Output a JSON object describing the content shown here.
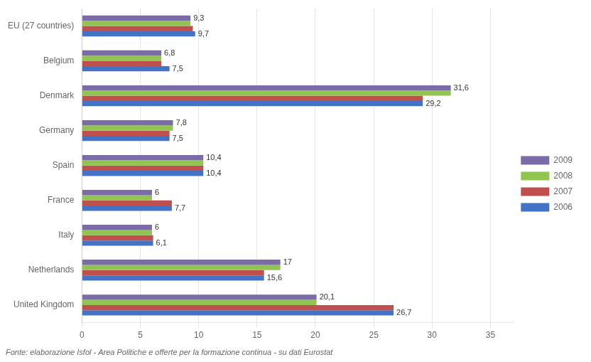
{
  "chart_data": {
    "type": "bar",
    "orientation": "horizontal",
    "categories": [
      "EU (27 countries)",
      "Belgium",
      "Denmark",
      "Germany",
      "Spain",
      "France",
      "Italy",
      "Netherlands",
      "United Kingdom"
    ],
    "series": [
      {
        "name": "2009",
        "color": "#7B6CA8",
        "values": [
          9.3,
          6.8,
          31.6,
          7.8,
          10.4,
          6.0,
          6.0,
          17.0,
          20.1
        ],
        "data_labels": true,
        "value_labels": [
          "9,3",
          "6,8",
          "31,6",
          "7,8",
          "10,4",
          "6",
          "6",
          "17",
          "20,1"
        ]
      },
      {
        "name": "2008",
        "color": "#92C452",
        "values": [
          9.3,
          6.8,
          31.6,
          7.8,
          10.4,
          6.0,
          6.0,
          17.0,
          20.1
        ]
      },
      {
        "name": "2007",
        "color": "#C0504D",
        "values": [
          9.5,
          6.8,
          29.2,
          7.5,
          10.4,
          7.7,
          6.1,
          15.6,
          26.7
        ]
      },
      {
        "name": "2006",
        "color": "#4472C4",
        "values": [
          9.7,
          7.5,
          29.2,
          7.5,
          10.4,
          7.7,
          6.1,
          15.6,
          26.7
        ],
        "data_labels": true,
        "value_labels": [
          "9,7",
          "7,5",
          "29,2",
          "7,5",
          "10,4",
          "7,7",
          "6,1",
          "15,6",
          "26,7"
        ]
      }
    ],
    "xlim": [
      0,
      37
    ],
    "xticks": [
      0,
      5,
      10,
      15,
      20,
      25,
      30,
      35
    ],
    "grid": true,
    "legend": "right",
    "footnote": "Fonte: elaborazione Isfol - Area Politiche e offerte per la formazione continua - su dati Eurostat"
  }
}
